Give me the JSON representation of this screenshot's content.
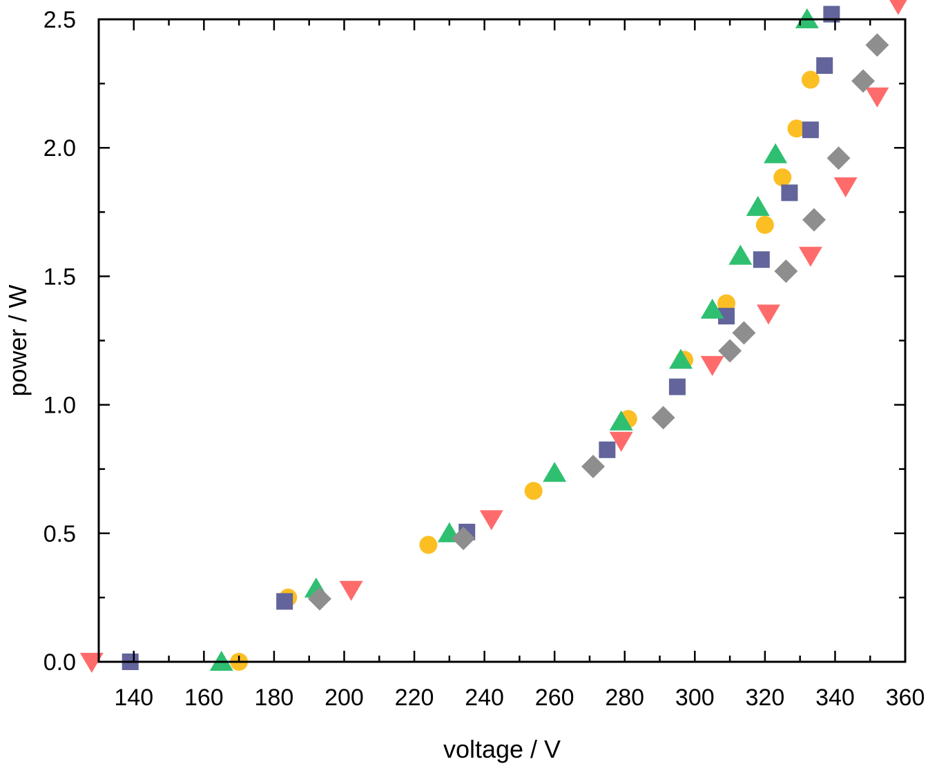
{
  "chart_data": {
    "type": "scatter",
    "title": "",
    "xlabel": "voltage / V",
    "ylabel": "power / W",
    "xlim": [
      130,
      360
    ],
    "ylim": [
      0,
      2.5
    ],
    "x_ticks": [
      140,
      160,
      180,
      200,
      220,
      240,
      260,
      280,
      300,
      320,
      340,
      360
    ],
    "x_tick_labels": [
      "140",
      "160",
      "180",
      "200",
      "220",
      "240",
      "260",
      "280",
      "300",
      "320",
      "340",
      "360"
    ],
    "y_ticks": [
      0,
      0.5,
      1.0,
      1.5,
      2.0,
      2.5
    ],
    "y_tick_labels": [
      "0.0",
      "0.5",
      "1.0",
      "1.5",
      "2.0",
      "2.5"
    ],
    "grid": false,
    "legend": "none",
    "series": [
      {
        "marker": "circle",
        "color": "#fbbf24",
        "x": [
          170,
          184,
          224,
          254,
          281,
          297,
          309,
          320,
          325,
          329,
          333
        ],
        "y": [
          0.0,
          0.25,
          0.455,
          0.665,
          0.945,
          1.175,
          1.395,
          1.7,
          1.885,
          2.075,
          2.265
        ]
      },
      {
        "marker": "square",
        "color": "#62649b",
        "x": [
          139,
          183,
          235,
          275,
          295,
          309,
          319,
          327,
          333,
          337,
          339
        ],
        "y": [
          0.0,
          0.235,
          0.505,
          0.825,
          1.07,
          1.345,
          1.565,
          1.825,
          2.07,
          2.32,
          2.52
        ]
      },
      {
        "marker": "triangle-up",
        "color": "#2fbf71",
        "x": [
          165,
          192,
          230,
          260,
          279,
          296,
          305,
          313,
          318,
          323,
          332
        ],
        "y": [
          0.0,
          0.285,
          0.5,
          0.735,
          0.935,
          1.175,
          1.37,
          1.58,
          1.77,
          1.975,
          2.5
        ]
      },
      {
        "marker": "triangle-down",
        "color": "#ff6b6b",
        "x": [
          128,
          202,
          242,
          279,
          305,
          321,
          333,
          343,
          352,
          358
        ],
        "y": [
          0.0,
          0.28,
          0.555,
          0.86,
          1.155,
          1.355,
          1.58,
          1.85,
          2.2,
          2.56
        ]
      },
      {
        "marker": "diamond",
        "color": "#8e8e8e",
        "x": [
          193,
          234,
          271,
          291,
          310,
          314,
          326,
          334,
          341,
          348,
          352
        ],
        "y": [
          0.245,
          0.48,
          0.76,
          0.95,
          1.21,
          1.28,
          1.52,
          1.72,
          1.96,
          2.26,
          2.4
        ]
      }
    ]
  }
}
